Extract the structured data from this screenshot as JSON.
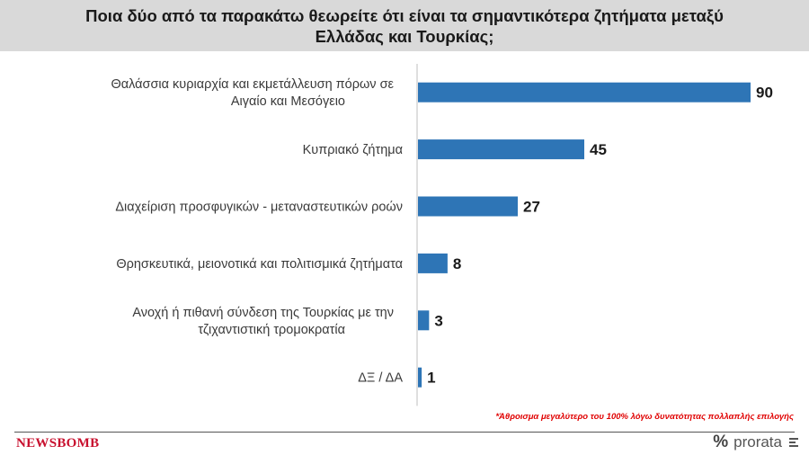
{
  "title": "Ποια δύο από τα παρακάτω θεωρείτε ότι είναι τα σημαντικότερα ζητήματα μεταξύ Ελλάδας και Τουρκίας;",
  "chart_data": {
    "type": "bar",
    "orientation": "horizontal",
    "categories": [
      [
        "Θαλάσσια κυριαρχία και εκμετάλλευση πόρων σε",
        "Αιγαίο και Μεσόγειο"
      ],
      [
        "Κυπριακό ζήτημα"
      ],
      [
        "Διαχείριση προσφυγικών - μεταναστευτικών ροών"
      ],
      [
        "Θρησκευτικά, μειονοτικά και πολιτισμικά ζητήματα"
      ],
      [
        "Ανοχή ή πιθανή σύνδεση της Τουρκίας με την",
        "τζιχαντιστική τρομοκρατία"
      ],
      [
        "ΔΞ / ΔΑ"
      ]
    ],
    "values": [
      90,
      45,
      27,
      8,
      3,
      1
    ],
    "xlim": [
      0,
      90
    ],
    "bar_color": "#2e75b6",
    "grid": false,
    "legend": "none"
  },
  "footnote": {
    "star": "*",
    "text": "Άθροισμα μεγαλύτερο του 100% λόγω δυνατότητας πολλαπλής επιλογής"
  },
  "logos": {
    "left": "NEWSBOMB",
    "right_symbol": "%",
    "right_text": "prorata"
  }
}
